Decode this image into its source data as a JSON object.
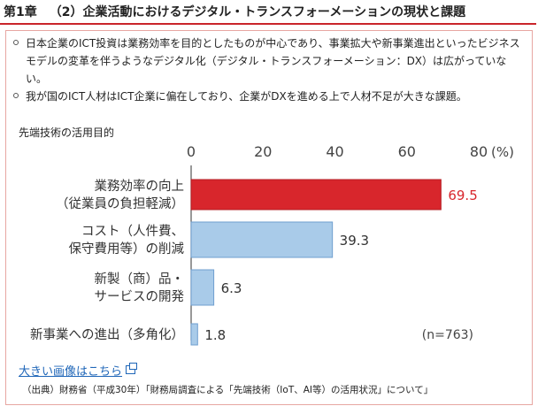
{
  "header": {
    "chapter": "第1章",
    "title": "（2）企業活動におけるデジタル・トランスフォーメーションの現状と課題"
  },
  "bullets": [
    "日本企業のICT投資は業務効率を目的としたものが中心であり、事業拡大や新事業進出といったビジネスモデルの変革を伴うようなデジタル化（デジタル・トランスフォーメーション：DX）は広がっていない。",
    "我が国のICT人材はICT企業に偏在しており、企業がDXを進める上で人材不足が大きな課題。"
  ],
  "chart_data": {
    "type": "bar",
    "orientation": "horizontal",
    "title": "先端技術の活用目的",
    "categories": [
      [
        "業務効率の向上",
        "（従業員の負担軽減）"
      ],
      [
        "コスト（人件費、",
        "保守費用等）の削減"
      ],
      [
        "新製（商）品・",
        "サービスの開発"
      ],
      [
        "新事業への進出（多角化）"
      ]
    ],
    "values": [
      69.5,
      39.3,
      6.3,
      1.8
    ],
    "value_labels": [
      "69.5",
      "39.3",
      "6.3",
      "1.8"
    ],
    "bar_colors": [
      "#d8262c",
      "#a9cbe9",
      "#a9cbe9",
      "#a9cbe9"
    ],
    "highlight_label_color": "#d8262c",
    "xlim": [
      0,
      80
    ],
    "ticks": [
      "0",
      "20",
      "40",
      "60",
      "80"
    ],
    "unit": "(%)",
    "note": "(n=763)",
    "grid": false
  },
  "link": {
    "label": "大きい画像はこちら",
    "icon": "external-window-icon"
  },
  "source": "（出典）財務省（平成30年）「財務局調査による「先端技術（IoT、AI等）の活用状況」について」"
}
